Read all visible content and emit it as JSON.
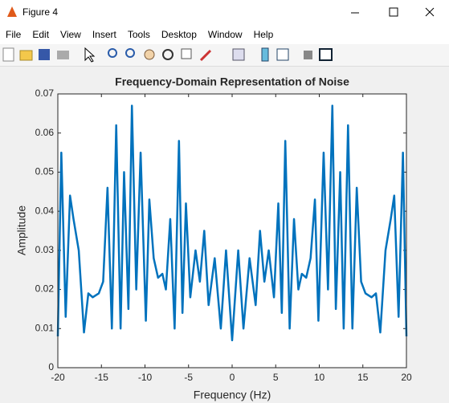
{
  "window": {
    "title": "Figure 4",
    "menu": [
      "File",
      "Edit",
      "View",
      "Insert",
      "Tools",
      "Desktop",
      "Window",
      "Help"
    ]
  },
  "chart_data": {
    "type": "line",
    "title": "Frequency-Domain Representation of Noise",
    "xlabel": "Frequency (Hz)",
    "ylabel": "Amplitude",
    "x": [
      -20,
      -19.6,
      -19.1,
      -18.6,
      -18.2,
      -17.6,
      -17,
      -16.5,
      -16,
      -15.3,
      -14.8,
      -14.3,
      -13.8,
      -13.3,
      -12.8,
      -12.4,
      -11.9,
      -11.5,
      -11,
      -10.5,
      -9.9,
      -9.5,
      -9,
      -8.5,
      -8,
      -7.6,
      -7.1,
      -6.6,
      -6.1,
      -5.7,
      -5.3,
      -4.8,
      -4.2,
      -3.7,
      -3.2,
      -2.7,
      -2,
      -1.3,
      -0.7,
      0,
      0.7,
      1.3,
      2,
      2.7,
      3.2,
      3.7,
      4.2,
      4.8,
      5.3,
      5.7,
      6.1,
      6.6,
      7.1,
      7.6,
      8,
      8.5,
      9,
      9.5,
      9.9,
      10.5,
      11,
      11.5,
      11.9,
      12.4,
      12.8,
      13.3,
      13.8,
      14.3,
      14.8,
      15.3,
      16,
      16.5,
      17,
      17.6,
      18.2,
      18.6,
      19.1,
      19.6,
      20
    ],
    "values": [
      0.008,
      0.055,
      0.013,
      0.044,
      0.038,
      0.03,
      0.009,
      0.019,
      0.018,
      0.019,
      0.022,
      0.046,
      0.01,
      0.062,
      0.01,
      0.05,
      0.015,
      0.067,
      0.02,
      0.055,
      0.012,
      0.043,
      0.028,
      0.023,
      0.024,
      0.02,
      0.038,
      0.01,
      0.058,
      0.014,
      0.042,
      0.018,
      0.03,
      0.022,
      0.035,
      0.016,
      0.028,
      0.01,
      0.03,
      0.007,
      0.03,
      0.01,
      0.028,
      0.016,
      0.035,
      0.022,
      0.03,
      0.018,
      0.042,
      0.014,
      0.058,
      0.01,
      0.038,
      0.02,
      0.024,
      0.023,
      0.028,
      0.043,
      0.012,
      0.055,
      0.02,
      0.067,
      0.015,
      0.05,
      0.01,
      0.062,
      0.01,
      0.046,
      0.022,
      0.019,
      0.018,
      0.019,
      0.009,
      0.03,
      0.038,
      0.044,
      0.013,
      0.055,
      0.008
    ],
    "color": "#0072bd",
    "xlim": [
      -20,
      20
    ],
    "xticks": [
      -20,
      -15,
      -10,
      -5,
      0,
      5,
      10,
      15,
      20
    ],
    "ylim": [
      0,
      0.07
    ],
    "yticks": [
      0,
      0.01,
      0.02,
      0.03,
      0.04,
      0.05,
      0.06,
      0.07
    ],
    "grid": false
  }
}
